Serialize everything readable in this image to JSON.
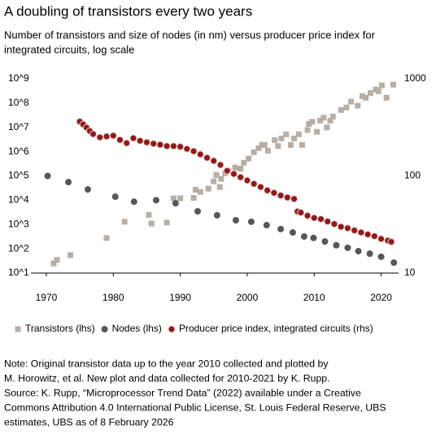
{
  "chart_data": {
    "type": "scatter",
    "title": "A doubling of transistors every two years",
    "subtitle": [
      "Number of transistors and size of nodes (in nm) versus producer price index for",
      "integrated circuits, log scale"
    ],
    "xlim": [
      1967.7,
      2022.6
    ],
    "xticks": [
      1970,
      1980,
      1990,
      2000,
      2010,
      2020
    ],
    "ylim": [
      10,
      1000000000
    ],
    "yscale": "log",
    "yticks": [
      {
        "value": 10,
        "label": "10^1"
      },
      {
        "value": 100,
        "label": "10^2"
      },
      {
        "value": 1000,
        "label": "10^3"
      },
      {
        "value": 10000,
        "label": "10^4"
      },
      {
        "value": 100000,
        "label": "10^5"
      },
      {
        "value": 1000000,
        "label": "10^6"
      },
      {
        "value": 10000000,
        "label": "10^7"
      },
      {
        "value": 100000000,
        "label": "10^8"
      },
      {
        "value": 1000000000,
        "label": "10^9"
      }
    ],
    "y2lim": [
      10,
      1000
    ],
    "y2scale": "log",
    "y2ticks": [
      10,
      100,
      1000
    ],
    "grid": false,
    "legend": "bottom",
    "series": [
      {
        "name": "Transistors (lhs)",
        "color": "#b8aea4",
        "marker": "square",
        "axis": "y",
        "x": [
          1971.1,
          1971.6,
          1973.6,
          1979,
          1981.7,
          1985.3,
          1985.7,
          1988,
          1989,
          1990,
          1992,
          1992.3,
          1993,
          1994.2,
          1995,
          1995.4,
          1995.9,
          1996.1,
          1996.7,
          1997.2,
          1998.2,
          1999,
          1999.5,
          2000.2,
          2001,
          2001.7,
          2002.2,
          2002.6,
          2003.1,
          2004.1,
          2004.6,
          2005.1,
          2005.8,
          2006.5,
          2007,
          2007.7,
          2008.2,
          2009,
          2009.2,
          2009.7,
          2010.4,
          2010.9,
          2011.4,
          2011.9,
          2012.4,
          2012.8,
          2014,
          2014.8,
          2015.5,
          2016.5,
          2017.2,
          2017.7,
          2018.4,
          2019.2,
          2019.6,
          2020.1,
          2020.8,
          2021.8
        ],
        "values": [
          25,
          35,
          55,
          280,
          1300,
          2500,
          1100,
          1200,
          12000,
          12000,
          12500,
          27000,
          22000,
          30000,
          60000,
          110000,
          35000,
          76000,
          130000,
          160000,
          220000,
          200000,
          350000,
          520000,
          950000,
          1400000,
          1900000,
          1900000,
          1100000,
          3000000,
          1700000,
          3500000,
          5200000,
          1900000,
          3500000,
          5200000,
          1900000,
          7800000,
          14000000,
          17000000,
          6600000,
          19000000,
          25000000,
          10000000,
          19000000,
          28000000,
          52000000,
          66000000,
          115000000,
          78000000,
          195000000,
          166000000,
          263000000,
          363000000,
          309000000,
          537000000,
          166000000,
          575000000
        ]
      },
      {
        "name": "Nodes (lhs)",
        "color": "#575757",
        "marker": "circle",
        "axis": "y",
        "x": [
          1970.2,
          1973.3,
          1976.2,
          1980.3,
          1983.1,
          1986.4,
          1989.3,
          1992.6,
          1995.5,
          1998.3,
          2000.6,
          2002.9,
          2005,
          2006.8,
          2008.5,
          2009.9,
          2011.6,
          2013.3,
          2015,
          2016.6,
          2018.3,
          2020,
          2021.9
        ],
        "values": [
          100000,
          56000,
          28000,
          14000,
          8700,
          10000,
          7500,
          3500,
          2400,
          1500,
          1300,
          940,
          650,
          470,
          320,
          280,
          200,
          140,
          110,
          80,
          63,
          47,
          27
        ]
      },
      {
        "name": "Producer price index, integrated circuits (rhs)",
        "color": "#8b1c1c",
        "marker": "circle",
        "axis": "y2",
        "x": [
          1975,
          1975.5,
          1976,
          1976.5,
          1977,
          1978,
          1979,
          1980,
          1981,
          1982,
          1983,
          1984,
          1985,
          1986,
          1987,
          1988,
          1989,
          1990,
          1991,
          1992,
          1993,
          1994,
          1995,
          1996,
          1997,
          1998,
          1999,
          2000,
          2001,
          2002,
          2003,
          2004,
          2005,
          2006,
          2007,
          2007.5,
          2008,
          2009,
          2010,
          2011,
          2012,
          2013,
          2014,
          2015,
          2016,
          2017,
          2018,
          2019,
          2020,
          2021,
          2021.5
        ],
        "values": [
          363,
          340,
          315,
          290,
          270,
          250,
          255,
          260,
          235,
          218,
          245,
          230,
          222,
          215,
          210,
          203,
          203,
          200,
          190,
          180,
          167,
          154,
          143,
          130,
          113,
          105,
          97,
          90,
          83,
          77,
          71,
          67,
          63,
          60,
          58,
          43,
          42,
          39,
          37,
          36,
          34,
          32,
          30,
          29,
          27.5,
          26.2,
          25,
          24,
          22.5,
          21.6,
          21
        ]
      }
    ],
    "note": [
      "Note: Original transistor data up to the year 2010 collected and plotted by",
      "M. Horowitz, et al. New plot and data collected for 2010-2021 by K. Rupp.",
      "Source: K. Rupp, “Microprocessor Trend Data” (2022) available under a Creative",
      "Commons Attribution 4.0 International Public License, St. Louis Federal Reserve, UBS",
      "estimates, UBS as of 8 February 2026"
    ]
  }
}
